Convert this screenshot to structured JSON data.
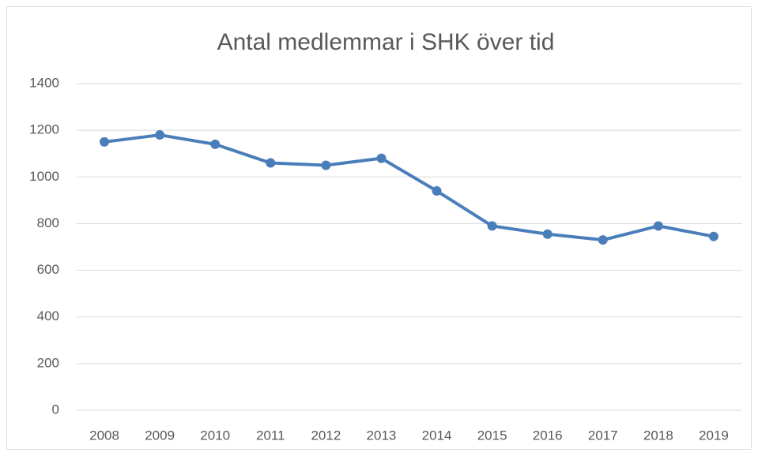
{
  "chart_data": {
    "type": "line",
    "title": "Antal medlemmar i SHK över tid",
    "categories": [
      "2008",
      "2009",
      "2010",
      "2011",
      "2012",
      "2013",
      "2014",
      "2015",
      "2016",
      "2017",
      "2018",
      "2019"
    ],
    "series": [
      {
        "name": "Antal medlemmar",
        "color": "#4a7ebb",
        "values": [
          1150,
          1180,
          1140,
          1060,
          1050,
          1080,
          940,
          790,
          755,
          730,
          790,
          745
        ]
      }
    ],
    "ylim": [
      0,
      1400
    ],
    "yticks": [
      0,
      200,
      400,
      600,
      800,
      1000,
      1200,
      1400
    ],
    "grid": true,
    "legend": false
  }
}
